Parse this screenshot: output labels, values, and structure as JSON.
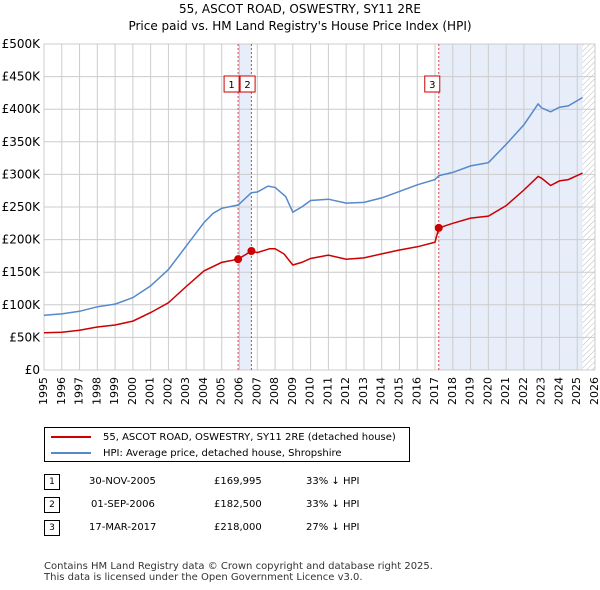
{
  "title_line1": "55, ASCOT ROAD, OSWESTRY, SY11 2RE",
  "title_line2": "Price paid vs. HM Land Registry's House Price Index (HPI)",
  "chart_data": {
    "type": "line",
    "title": "55, ASCOT ROAD, OSWESTRY, SY11 2RE — Price paid vs. HM Land Registry's House Price Index (HPI)",
    "xlabel": "",
    "ylabel": "",
    "xlim": [
      1995,
      2026
    ],
    "ylim": [
      0,
      500000
    ],
    "x_ticks": [
      "1995",
      "1996",
      "1997",
      "1998",
      "1999",
      "2000",
      "2001",
      "2002",
      "2003",
      "2004",
      "2005",
      "2006",
      "2007",
      "2008",
      "2009",
      "2010",
      "2011",
      "2012",
      "2013",
      "2014",
      "2015",
      "2016",
      "2017",
      "2018",
      "2019",
      "2020",
      "2021",
      "2022",
      "2023",
      "2024",
      "2025",
      "2026"
    ],
    "y_ticks": [
      "£0",
      "£50K",
      "£100K",
      "£150K",
      "£200K",
      "£250K",
      "£300K",
      "£350K",
      "£400K",
      "£450K",
      "£500K"
    ],
    "grid": true,
    "series": [
      {
        "name": "55, ASCOT ROAD, OSWESTRY, SY11 2RE (detached house)",
        "color": "#cc0000",
        "points": [
          [
            1995.0,
            57000
          ],
          [
            1996.0,
            58000
          ],
          [
            1997.0,
            61000
          ],
          [
            1998.0,
            66000
          ],
          [
            1999.0,
            69000
          ],
          [
            2000.0,
            75000
          ],
          [
            2001.0,
            88000
          ],
          [
            2002.0,
            103000
          ],
          [
            2003.0,
            128000
          ],
          [
            2004.0,
            152000
          ],
          [
            2005.0,
            165000
          ],
          [
            2005.92,
            169995
          ],
          [
            2006.67,
            182500
          ],
          [
            2007.0,
            180000
          ],
          [
            2007.7,
            186000
          ],
          [
            2008.0,
            186000
          ],
          [
            2008.5,
            178000
          ],
          [
            2009.0,
            161000
          ],
          [
            2009.5,
            165000
          ],
          [
            2010.0,
            171000
          ],
          [
            2011.0,
            176000
          ],
          [
            2012.0,
            170000
          ],
          [
            2013.0,
            172000
          ],
          [
            2014.0,
            178000
          ],
          [
            2015.0,
            184000
          ],
          [
            2016.0,
            189000
          ],
          [
            2017.0,
            196000
          ],
          [
            2017.21,
            218000
          ],
          [
            2018.0,
            225000
          ],
          [
            2019.0,
            233000
          ],
          [
            2020.0,
            236000
          ],
          [
            2021.0,
            252000
          ],
          [
            2022.0,
            276000
          ],
          [
            2022.8,
            297000
          ],
          [
            2023.0,
            294000
          ],
          [
            2023.5,
            283000
          ],
          [
            2024.0,
            290000
          ],
          [
            2024.5,
            292000
          ],
          [
            2025.3,
            302000
          ]
        ]
      },
      {
        "name": "HPI: Average price, detached house, Shropshire",
        "color": "#5588cc",
        "points": [
          [
            1995.0,
            84000
          ],
          [
            1996.0,
            86000
          ],
          [
            1997.0,
            90000
          ],
          [
            1998.0,
            97000
          ],
          [
            1999.0,
            101000
          ],
          [
            2000.0,
            111000
          ],
          [
            2001.0,
            129000
          ],
          [
            2002.0,
            154000
          ],
          [
            2003.0,
            190000
          ],
          [
            2004.0,
            226000
          ],
          [
            2004.5,
            240000
          ],
          [
            2005.0,
            248000
          ],
          [
            2005.92,
            253000
          ],
          [
            2006.67,
            272000
          ],
          [
            2007.0,
            273000
          ],
          [
            2007.6,
            282000
          ],
          [
            2008.0,
            280000
          ],
          [
            2008.6,
            266000
          ],
          [
            2009.0,
            242000
          ],
          [
            2009.5,
            250000
          ],
          [
            2010.0,
            260000
          ],
          [
            2011.0,
            262000
          ],
          [
            2012.0,
            256000
          ],
          [
            2013.0,
            257000
          ],
          [
            2014.0,
            264000
          ],
          [
            2015.0,
            274000
          ],
          [
            2016.0,
            284000
          ],
          [
            2017.0,
            292000
          ],
          [
            2017.21,
            298000
          ],
          [
            2018.0,
            303000
          ],
          [
            2019.0,
            313000
          ],
          [
            2020.0,
            318000
          ],
          [
            2021.0,
            346000
          ],
          [
            2022.0,
            376000
          ],
          [
            2022.8,
            408000
          ],
          [
            2023.0,
            402000
          ],
          [
            2023.5,
            396000
          ],
          [
            2024.0,
            403000
          ],
          [
            2024.5,
            405000
          ],
          [
            2025.3,
            418000
          ]
        ]
      }
    ],
    "shaded_regions": [
      {
        "x0": 2005.92,
        "x1": 2006.67
      },
      {
        "x0": 2017.21,
        "x1": 2025.3
      }
    ],
    "hatched_region": {
      "x0": 2025.3,
      "x1": 2026.0
    },
    "annotations": [
      {
        "label": "1",
        "x": 2005.92,
        "price": 169995
      },
      {
        "label": "2",
        "x": 2006.67,
        "price": 182500
      },
      {
        "label": "3",
        "x": 2017.21,
        "price": 218000
      }
    ]
  },
  "legend": {
    "property_label": "55, ASCOT ROAD, OSWESTRY, SY11 2RE (detached house)",
    "hpi_label": "HPI: Average price, detached house, Shropshire",
    "property_color": "#cc0000",
    "hpi_color": "#5588cc"
  },
  "transactions": [
    {
      "num": "1",
      "date": "30-NOV-2005",
      "price": "£169,995",
      "hpi": "33% ↓ HPI"
    },
    {
      "num": "2",
      "date": "01-SEP-2006",
      "price": "£182,500",
      "hpi": "33% ↓ HPI"
    },
    {
      "num": "3",
      "date": "17-MAR-2017",
      "price": "£218,000",
      "hpi": "27% ↓ HPI"
    }
  ],
  "footer": {
    "line1": "Contains HM Land Registry data © Crown copyright and database right 2025.",
    "line2": "This data is licensed under the Open Government Licence v3.0."
  }
}
